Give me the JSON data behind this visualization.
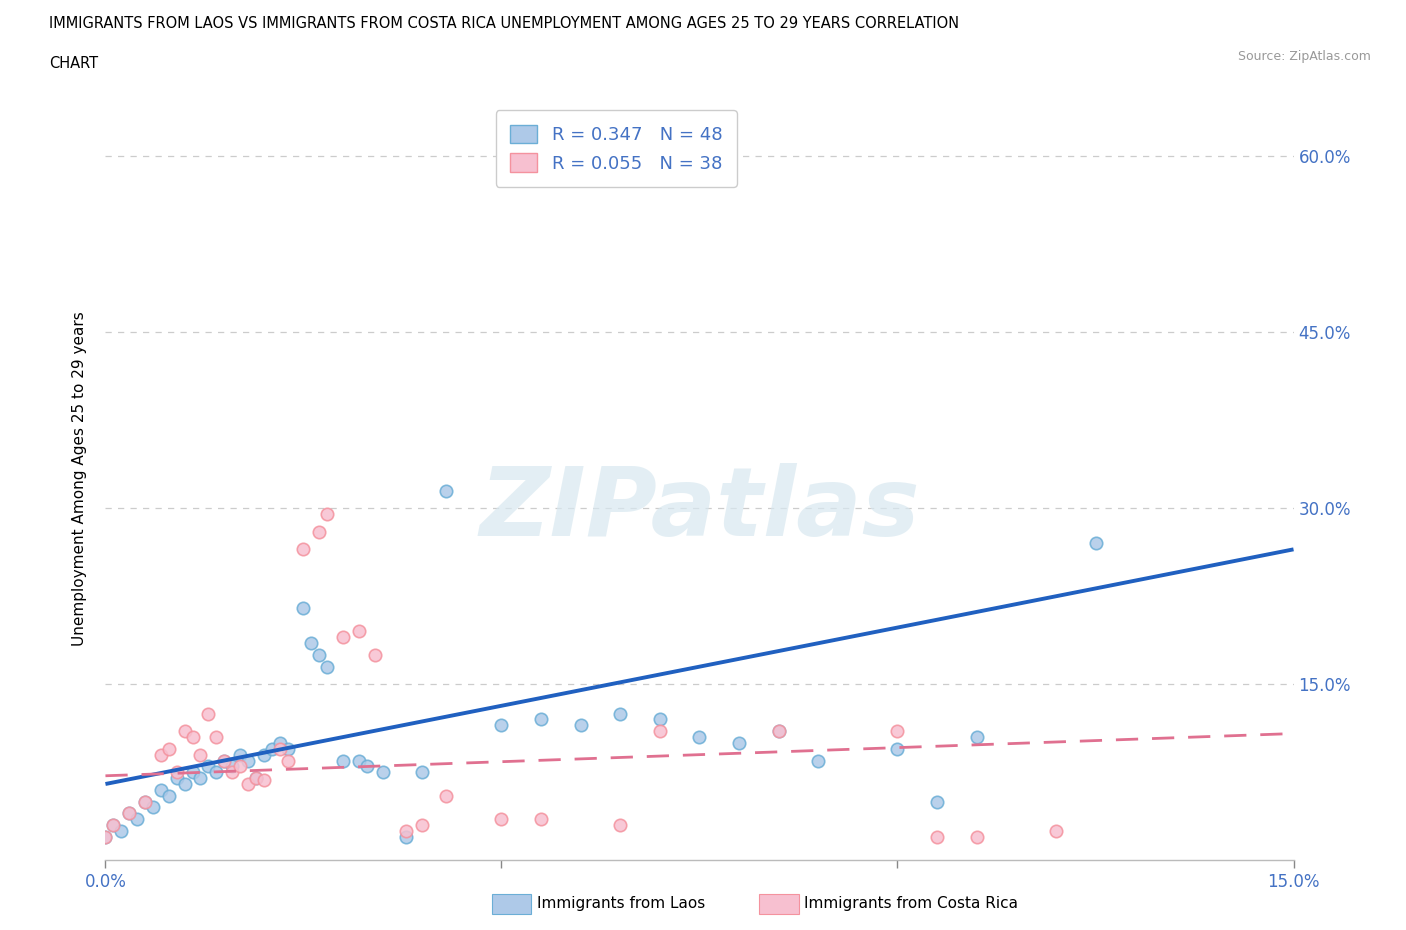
{
  "title_line1": "IMMIGRANTS FROM LAOS VS IMMIGRANTS FROM COSTA RICA UNEMPLOYMENT AMONG AGES 25 TO 29 YEARS CORRELATION",
  "title_line2": "CHART",
  "source": "Source: ZipAtlas.com",
  "ylabel": "Unemployment Among Ages 25 to 29 years",
  "xlim": [
    0.0,
    0.15
  ],
  "ylim": [
    0.0,
    0.65
  ],
  "laos_color": "#aec9e8",
  "laos_edge_color": "#6baed6",
  "costa_rica_color": "#f7c0d0",
  "costa_rica_edge_color": "#f4929e",
  "laos_line_color": "#2060c0",
  "costa_rica_line_color": "#e07090",
  "tick_label_color": "#4472c4",
  "grid_color": "#cccccc",
  "background_color": "#ffffff",
  "legend_laos_label": "R = 0.347   N = 48",
  "legend_costa_rica_label": "R = 0.055   N = 38",
  "watermark": "ZIPatlas",
  "laos_scatter_x": [
    0.0,
    0.001,
    0.002,
    0.003,
    0.004,
    0.005,
    0.006,
    0.007,
    0.008,
    0.009,
    0.01,
    0.011,
    0.012,
    0.013,
    0.014,
    0.015,
    0.016,
    0.017,
    0.018,
    0.019,
    0.02,
    0.021,
    0.022,
    0.023,
    0.025,
    0.026,
    0.027,
    0.028,
    0.03,
    0.032,
    0.033,
    0.035,
    0.038,
    0.04,
    0.043,
    0.05,
    0.055,
    0.06,
    0.065,
    0.07,
    0.075,
    0.08,
    0.085,
    0.09,
    0.1,
    0.105,
    0.11,
    0.125
  ],
  "laos_scatter_y": [
    0.02,
    0.03,
    0.025,
    0.04,
    0.035,
    0.05,
    0.045,
    0.06,
    0.055,
    0.07,
    0.065,
    0.075,
    0.07,
    0.08,
    0.075,
    0.085,
    0.08,
    0.09,
    0.085,
    0.07,
    0.09,
    0.095,
    0.1,
    0.095,
    0.215,
    0.185,
    0.175,
    0.165,
    0.085,
    0.085,
    0.08,
    0.075,
    0.02,
    0.075,
    0.315,
    0.115,
    0.12,
    0.115,
    0.125,
    0.12,
    0.105,
    0.1,
    0.11,
    0.085,
    0.095,
    0.05,
    0.105,
    0.27
  ],
  "costa_rica_scatter_x": [
    0.0,
    0.001,
    0.003,
    0.005,
    0.007,
    0.008,
    0.009,
    0.01,
    0.011,
    0.012,
    0.013,
    0.014,
    0.015,
    0.016,
    0.017,
    0.018,
    0.019,
    0.02,
    0.022,
    0.023,
    0.025,
    0.027,
    0.028,
    0.03,
    0.032,
    0.034,
    0.038,
    0.04,
    0.043,
    0.05,
    0.055,
    0.065,
    0.07,
    0.085,
    0.1,
    0.105,
    0.11,
    0.12
  ],
  "costa_rica_scatter_y": [
    0.02,
    0.03,
    0.04,
    0.05,
    0.09,
    0.095,
    0.075,
    0.11,
    0.105,
    0.09,
    0.125,
    0.105,
    0.085,
    0.075,
    0.08,
    0.065,
    0.07,
    0.068,
    0.095,
    0.085,
    0.265,
    0.28,
    0.295,
    0.19,
    0.195,
    0.175,
    0.025,
    0.03,
    0.055,
    0.035,
    0.035,
    0.03,
    0.11,
    0.11,
    0.11,
    0.02,
    0.02,
    0.025
  ],
  "laos_trend_x": [
    0.0,
    0.15
  ],
  "laos_trend_y": [
    0.065,
    0.265
  ],
  "costa_rica_trend_x": [
    0.0,
    0.15
  ],
  "costa_rica_trend_y": [
    0.072,
    0.108
  ]
}
